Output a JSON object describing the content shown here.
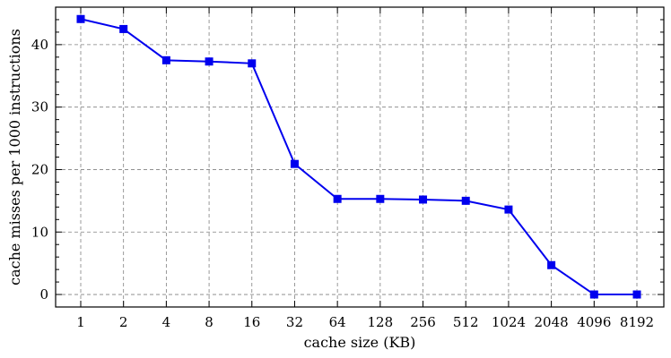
{
  "chart_data": {
    "type": "line",
    "title": "",
    "xlabel": "cache size (KB)",
    "ylabel": "cache misses per 1000 instructions",
    "categories": [
      "1",
      "2",
      "4",
      "8",
      "16",
      "32",
      "64",
      "128",
      "256",
      "512",
      "1024",
      "2048",
      "4096",
      "8192"
    ],
    "x_scale": "log2",
    "yticks": [
      "0",
      "10",
      "20",
      "30",
      "40"
    ],
    "ylim": [
      -2,
      46
    ],
    "grid": true,
    "legend": "none",
    "series": [
      {
        "color": "#0000ee",
        "marker": "square",
        "values": [
          44.1,
          42.5,
          37.5,
          37.3,
          37.0,
          20.9,
          15.3,
          15.3,
          15.2,
          15.0,
          13.6,
          4.7,
          0.0,
          0.0
        ]
      }
    ]
  }
}
